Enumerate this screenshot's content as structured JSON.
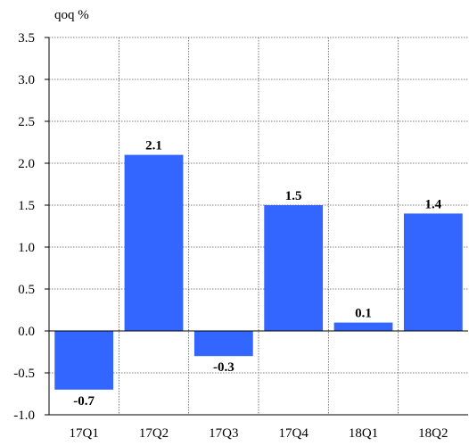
{
  "chart_data": {
    "type": "bar",
    "title": "",
    "xlabel": "",
    "ylabel": "qoq %",
    "categories": [
      "17Q1",
      "17Q2",
      "17Q3",
      "17Q4",
      "18Q1",
      "18Q2"
    ],
    "values": [
      -0.7,
      2.1,
      -0.3,
      1.5,
      0.1,
      1.4
    ],
    "data_labels": [
      "-0.7",
      "2.1",
      "-0.3",
      "1.5",
      "0.1",
      "1.4"
    ],
    "ylim": [
      -1.0,
      3.5
    ],
    "yticks": [
      "3.5",
      "3.0",
      "2.5",
      "2.0",
      "1.5",
      "1.0",
      "0.5",
      "0.0",
      "-0.5",
      "-1.0"
    ],
    "ytick_values": [
      3.5,
      3.0,
      2.5,
      2.0,
      1.5,
      1.0,
      0.5,
      0.0,
      -0.5,
      -1.0
    ],
    "grid": true,
    "bar_color": "#3366ff"
  }
}
